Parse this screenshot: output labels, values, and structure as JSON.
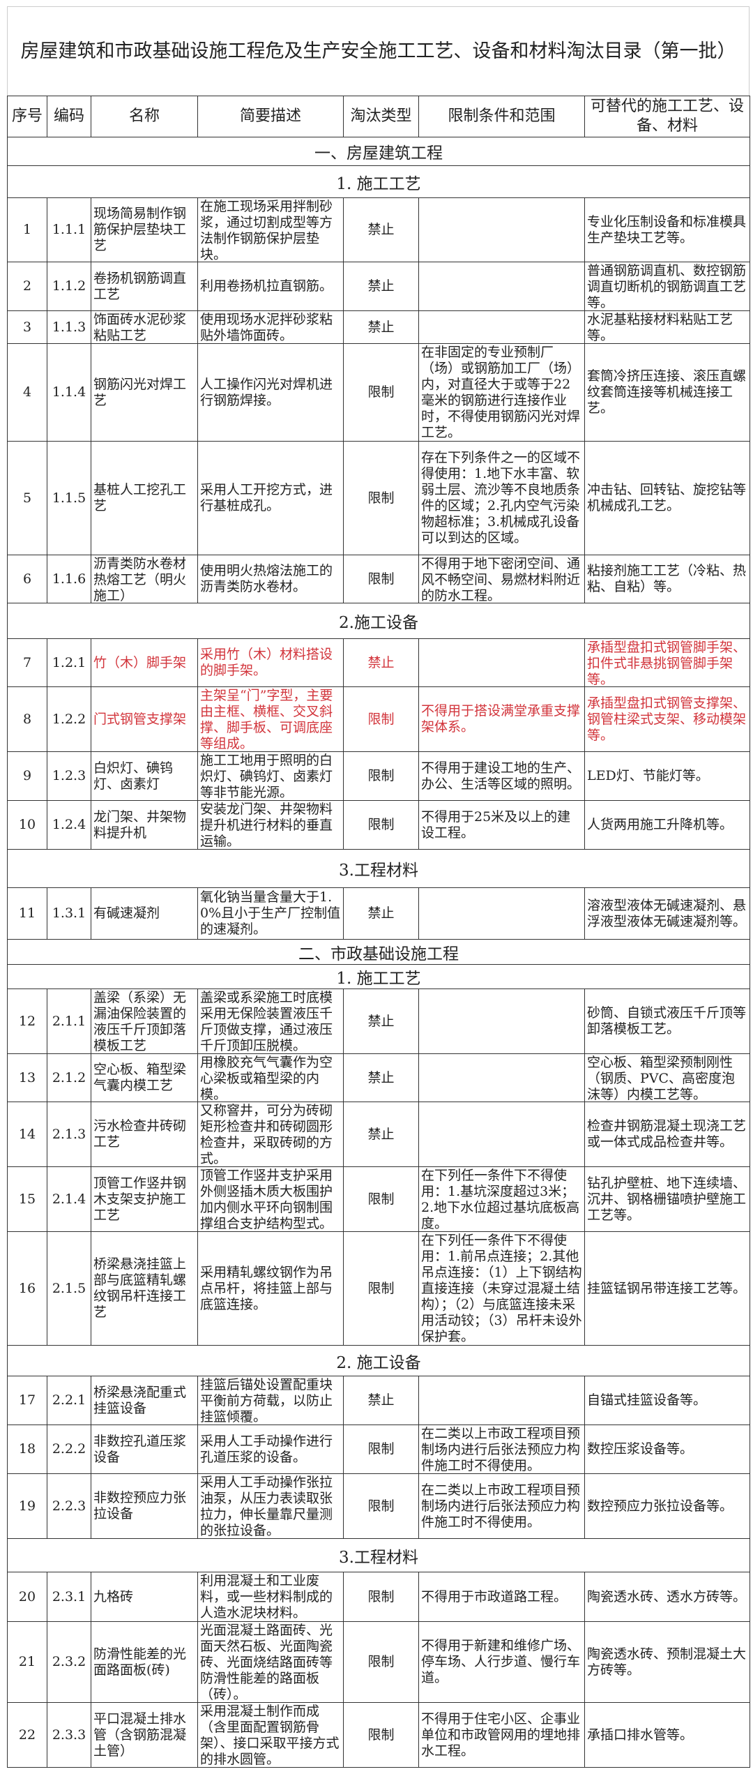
{
  "title": "房屋建筑和市政基础设施工程危及生产安全施工工艺、设备和材料淘汰目录（第一批）",
  "columns": [
    "序号",
    "编码",
    "名称",
    "简要描述",
    "淘汰类型",
    "限制条件和范围",
    "可替代的施工工艺、设备、材料"
  ],
  "highlight_color": "#d2343b",
  "body": [
    {
      "kind": "section",
      "label": "一、房屋建筑工程"
    },
    {
      "kind": "section",
      "label": "1. 施工工艺"
    },
    {
      "kind": "row",
      "no": "1",
      "code": "1.1.1",
      "name": "现场简易制作钢筋保护层垫块工艺",
      "desc": "在施工现场采用拌制砂浆，通过切割成型等方法制作钢筋保护层垫块。",
      "type": "禁止",
      "limit": "",
      "alt": "专业化压制设备和标准模具生产垫块工艺等。"
    },
    {
      "kind": "row",
      "no": "2",
      "code": "1.1.2",
      "name": "卷扬机钢筋调直工艺",
      "desc": "利用卷扬机拉直钢筋。",
      "type": "禁止",
      "limit": "",
      "alt": "普通钢筋调直机、数控钢筋调直切断机的钢筋调直工艺等。"
    },
    {
      "kind": "row",
      "no": "3",
      "code": "1.1.3",
      "name": "饰面砖水泥砂浆粘贴工艺",
      "desc": "使用现场水泥拌砂浆粘贴外墙饰面砖。",
      "type": "禁止",
      "limit": "",
      "alt": "水泥基粘接材料粘贴工艺等。"
    },
    {
      "kind": "row",
      "no": "4",
      "code": "1.1.4",
      "name": "钢筋闪光对焊工艺",
      "desc": "人工操作闪光对焊机进行钢筋焊接。",
      "type": "限制",
      "limit": "在非固定的专业预制厂（场）或钢筋加工厂（场）内，对直径大于或等于22毫米的钢筋进行连接作业时，不得使用钢筋闪光对焊工艺。",
      "alt": "套筒冷挤压连接、滚压直螺纹套筒连接等机械连接工艺。"
    },
    {
      "kind": "row",
      "no": "5",
      "code": "1.1.5",
      "name": "基桩人工挖孔工艺",
      "desc": "采用人工开挖方式，进行基桩成孔。",
      "type": "限制",
      "limit": "存在下列条件之一的区域不得使用：1.地下水丰富、软弱土层、流沙等不良地质条件的区域；2.孔内空气污染物超标准；3.机械成孔设备可以到达的区域。",
      "alt": "冲击钻、回转钻、旋挖钻等机械成孔工艺。"
    },
    {
      "kind": "row",
      "no": "6",
      "code": "1.1.6",
      "name": "沥青类防水卷材热熔工艺（明火施工）",
      "desc": "使用明火热熔法施工的沥青类防水卷材。",
      "type": "限制",
      "limit": "不得用于地下密闭空间、通风不畅空间、易燃材料附近的防水工程。",
      "alt": "粘接剂施工工艺（冷粘、热粘、自粘）等。"
    },
    {
      "kind": "section",
      "label": "2.施工设备"
    },
    {
      "kind": "row",
      "highlight": true,
      "no": "7",
      "code": "1.2.1",
      "name": "竹（木）脚手架",
      "desc": "采用竹（木）材料搭设的脚手架。",
      "type": "禁止",
      "limit": "",
      "alt": "承插型盘扣式钢管脚手架、扣件式非悬挑钢管脚手架等。"
    },
    {
      "kind": "row",
      "highlight": true,
      "no": "8",
      "code": "1.2.2",
      "name": "门式钢管支撑架",
      "desc": "主架呈“门”字型，主要由主框、横框、交叉斜撑、脚手板、可调底座等组成。",
      "type": "限制",
      "limit": "不得用于搭设满堂承重支撑架体系。",
      "alt": "承插型盘扣式钢管支撑架、钢管柱梁式支架、移动模架等。"
    },
    {
      "kind": "row",
      "no": "9",
      "code": "1.2.3",
      "name": "白炽灯、碘钨灯、卤素灯",
      "desc": "施工工地用于照明的白炽灯、碘钨灯、卤素灯等非节能光源。",
      "type": "限制",
      "limit": "不得用于建设工地的生产、办公、生活等区域的照明。",
      "alt": "LED灯、节能灯等。"
    },
    {
      "kind": "row",
      "no": "10",
      "code": "1.2.4",
      "name": "龙门架、井架物料提升机",
      "desc": "安装龙门架、井架物料提升机进行材料的垂直运输。",
      "type": "限制",
      "limit": "不得用于25米及以上的建设工程。",
      "alt": "人货两用施工升降机等。"
    },
    {
      "kind": "section",
      "label": "3.工程材料"
    },
    {
      "kind": "row",
      "no": "11",
      "code": "1.3.1",
      "name": "有碱速凝剂",
      "desc": "氧化钠当量含量大于1.0%且小于生产厂控制值的速凝剂。",
      "type": "禁止",
      "limit": "",
      "alt": "溶液型液体无碱速凝剂、悬浮液型液体无碱速凝剂等。"
    },
    {
      "kind": "section",
      "label": "二、市政基础设施工程"
    },
    {
      "kind": "section",
      "label": "1. 施工工艺"
    },
    {
      "kind": "row",
      "no": "12",
      "code": "2.1.1",
      "name": "盖梁（系梁）无漏油保险装置的液压千斤顶卸落模板工艺",
      "desc": "盖梁或系梁施工时底模采用无保险装置液压千斤顶做支撑，通过液压千斤顶卸压脱模。",
      "type": "禁止",
      "limit": "",
      "alt": "砂筒、自锁式液压千斤顶等卸落模板工艺。"
    },
    {
      "kind": "row",
      "no": "13",
      "code": "2.1.2",
      "name": "空心板、箱型梁气囊内模工艺",
      "desc": "用橡胶充气气囊作为空心梁板或箱型梁的内模。",
      "type": "禁止",
      "limit": "",
      "alt": "空心板、箱型梁预制刚性（钢质、PVC、高密度泡沫等）内模工艺等。"
    },
    {
      "kind": "row",
      "no": "14",
      "code": "2.1.3",
      "name": "污水检查井砖砌工艺",
      "desc": "又称窨井，可分为砖砌矩形检查井和砖砌圆形检查井，采取砖砌的方式。",
      "type": "禁止",
      "limit": "",
      "alt": "检查井钢筋混凝土现浇工艺或一体式成品检查井等。"
    },
    {
      "kind": "row",
      "no": "15",
      "code": "2.1.4",
      "name": "顶管工作竖井钢木支架支护施工工艺",
      "desc": "顶管工作竖井支护采用外侧竖插木质大板围护加内侧水平环向钢制围撑组合支护结构型式。",
      "type": "限制",
      "limit": "在下列任一条件下不得使用：1.基坑深度超过3米；2.地下水位超过基坑底板高度。",
      "alt": "钻孔护壁桩、地下连续墙、沉井、钢格栅锚喷护壁施工工艺等。"
    },
    {
      "kind": "row",
      "no": "16",
      "code": "2.1.5",
      "name": "桥梁悬浇挂篮上部与底篮精轧螺纹钢吊杆连接工艺",
      "desc": "采用精轧螺纹钢作为吊点吊杆，将挂篮上部与底篮连接。",
      "type": "限制",
      "limit": "在下列任一条件下不得使用：1.前吊点连接；2.其他吊点连接：（1）上下钢结构直接连接（未穿过混凝土结构）；（2）与底篮连接未采用活动铰；（3）吊杆未设外保护套。",
      "alt": "挂篮锰钢吊带连接工艺等。"
    },
    {
      "kind": "section",
      "label": "2. 施工设备"
    },
    {
      "kind": "row",
      "no": "17",
      "code": "2.2.1",
      "name": "桥梁悬浇配重式挂篮设备",
      "desc": "挂篮后锚处设置配重块平衡前方荷载，以防止挂篮倾覆。",
      "type": "禁止",
      "limit": "",
      "alt": "自锚式挂篮设备等。"
    },
    {
      "kind": "row",
      "no": "18",
      "code": "2.2.2",
      "name": "非数控孔道压浆设备",
      "desc": "采用人工手动操作进行孔道压浆的设备。",
      "type": "限制",
      "limit": "在二类以上市政工程项目预制场内进行后张法预应力构件施工时不得使用。",
      "alt": "数控压浆设备等。"
    },
    {
      "kind": "row",
      "no": "19",
      "code": "2.2.3",
      "name": "非数控预应力张拉设备",
      "desc": "采用人工手动操作张拉油泵，从压力表读取张拉力，伸长量靠尺量测的张拉设备。",
      "type": "限制",
      "limit": "在二类以上市政工程项目预制场内进行后张法预应力构件施工时不得使用。",
      "alt": "数控预应力张拉设备等。"
    },
    {
      "kind": "section",
      "label": "3.工程材料"
    },
    {
      "kind": "row",
      "no": "20",
      "code": "2.3.1",
      "name": "九格砖",
      "desc": "利用混凝土和工业废料，或一些材料制成的人造水泥块材料。",
      "type": "限制",
      "limit": "不得用于市政道路工程。",
      "alt": "陶瓷透水砖、透水方砖等。"
    },
    {
      "kind": "row",
      "no": "21",
      "code": "2.3.2",
      "name": "防滑性能差的光面路面板(砖)",
      "desc": "光面混凝土路面砖、光面天然石板、光面陶瓷砖、光面烧结路面砖等防滑性能差的路面板（砖）。",
      "type": "限制",
      "limit": "不得用于新建和维修广场、停车场、人行步道、慢行车道。",
      "alt": "陶瓷透水砖、预制混凝土大方砖等。"
    },
    {
      "kind": "row",
      "no": "22",
      "code": "2.3.3",
      "name": "平口混凝土排水管（含钢筋混凝土管）",
      "desc": "采用混凝土制作而成（含里面配置钢筋骨架）、接口采取平接方式的排水圆管。",
      "type": "限制",
      "limit": "不得用于住宅小区、企事业单位和市政管网用的埋地排水工程。",
      "alt": "承插口排水管等。"
    }
  ]
}
